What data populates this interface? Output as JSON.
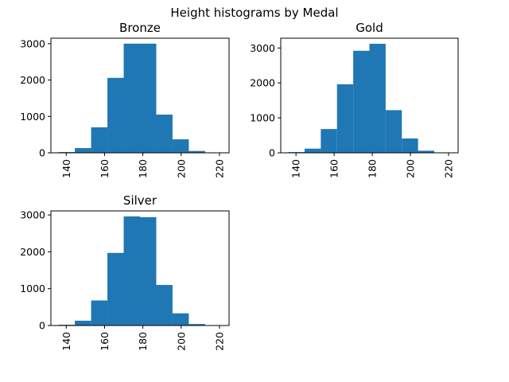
{
  "figure_title": "Height histograms by Medal",
  "chart_data": [
    {
      "type": "bar",
      "title": "Bronze",
      "bin_edges": [
        136,
        144.5,
        153,
        161.5,
        170,
        178.5,
        187,
        195.5,
        204,
        212.5,
        221
      ],
      "values": [
        20,
        130,
        700,
        2060,
        3000,
        3000,
        1050,
        370,
        50,
        10
      ],
      "xticks": [
        140,
        160,
        180,
        200,
        220
      ],
      "yticks": [
        0,
        1000,
        2000,
        3000
      ],
      "xlim": [
        132,
        225
      ],
      "ylim": [
        0,
        3150
      ],
      "grid": false,
      "color": "#1f77b4"
    },
    {
      "type": "bar",
      "title": "Gold",
      "bin_edges": [
        136,
        144.5,
        153,
        161.5,
        170,
        178.5,
        187,
        195.5,
        204,
        212.5,
        221
      ],
      "values": [
        20,
        120,
        680,
        1960,
        2920,
        3120,
        1220,
        410,
        60,
        10
      ],
      "xticks": [
        140,
        160,
        180,
        200,
        220
      ],
      "yticks": [
        0,
        1000,
        2000,
        3000
      ],
      "xlim": [
        132,
        225
      ],
      "ylim": [
        0,
        3280
      ],
      "grid": false,
      "color": "#1f77b4"
    },
    {
      "type": "bar",
      "title": "Silver",
      "bin_edges": [
        136,
        144.5,
        153,
        161.5,
        170,
        178.5,
        187,
        195.5,
        204,
        212.5,
        221
      ],
      "values": [
        20,
        130,
        680,
        1970,
        2960,
        2940,
        1100,
        330,
        40,
        10
      ],
      "xticks": [
        140,
        160,
        180,
        200,
        220
      ],
      "yticks": [
        0,
        1000,
        2000,
        3000
      ],
      "xlim": [
        132,
        225
      ],
      "ylim": [
        0,
        3110
      ],
      "grid": false,
      "color": "#1f77b4"
    }
  ]
}
